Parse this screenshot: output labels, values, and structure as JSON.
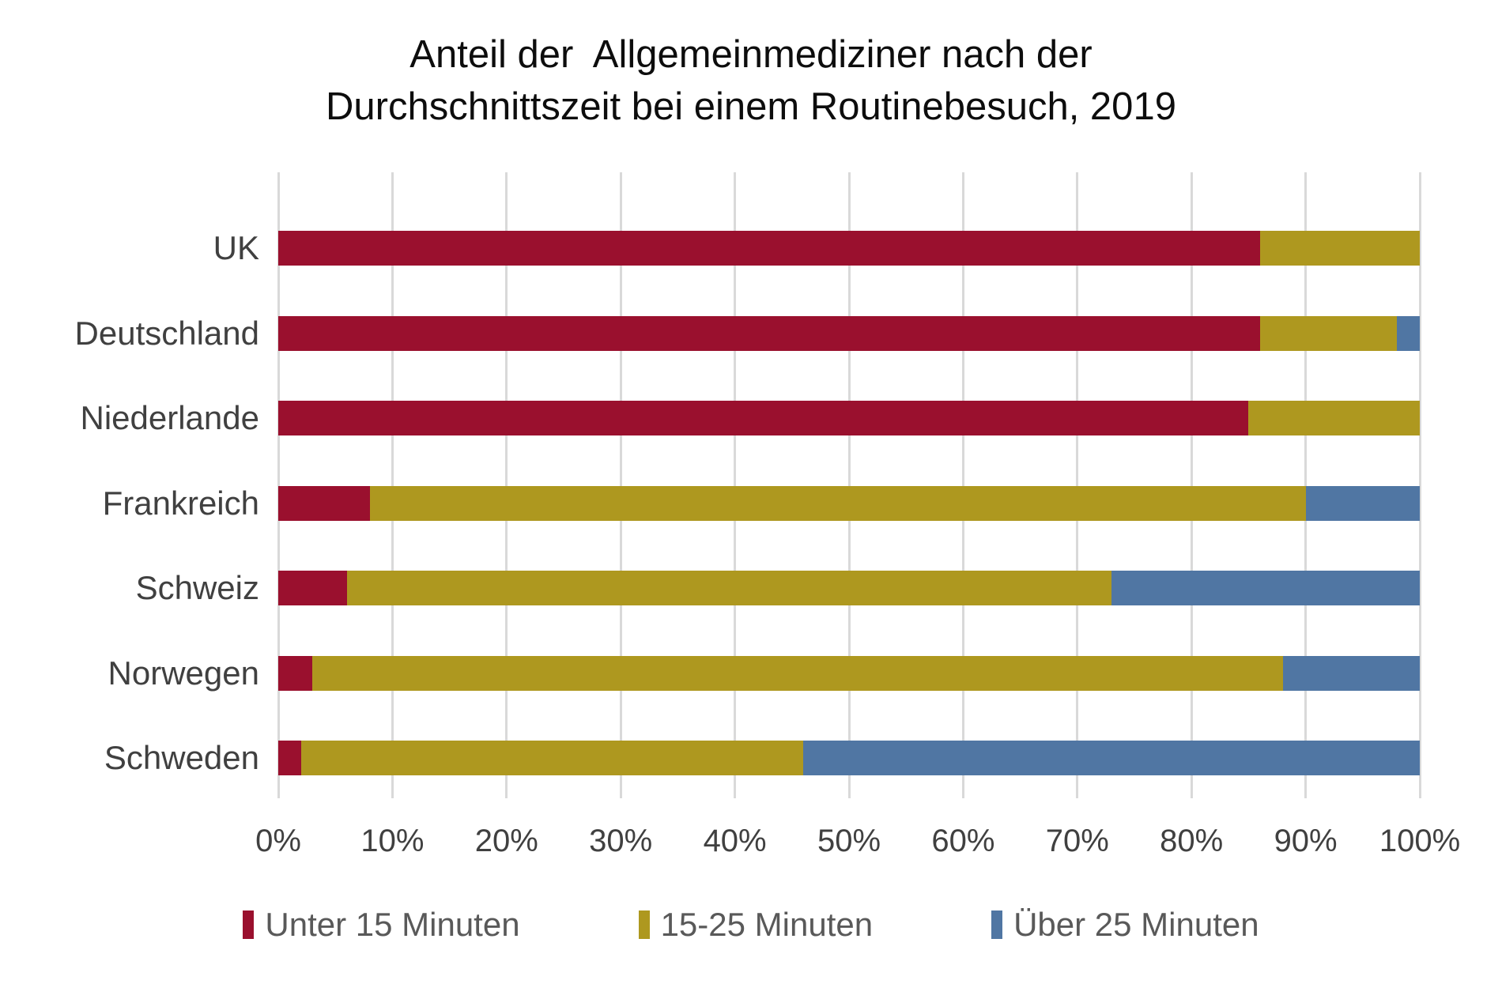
{
  "title": {
    "line1": "Anteil der  Allgemeinmediziner nach der",
    "line2": "Durchschnittszeit bei einem Routinebesuch, 2019"
  },
  "chart_data": {
    "type": "bar",
    "orientation": "horizontal",
    "stacked": true,
    "title": "Anteil der Allgemeinmediziner nach der Durchschnittszeit bei einem Routinebesuch, 2019",
    "categories": [
      "UK",
      "Deutschland",
      "Niederlande",
      "Frankreich",
      "Schweiz",
      "Norwegen",
      "Schweden"
    ],
    "series": [
      {
        "name": "Unter 15 Minuten",
        "color": "#9a102e",
        "values": [
          86,
          86,
          85,
          8,
          6,
          3,
          2
        ]
      },
      {
        "name": "15-25 Minuten",
        "color": "#ae981f",
        "values": [
          14,
          12,
          15,
          82,
          67,
          85,
          44
        ]
      },
      {
        "name": "Über 25 Minuten",
        "color": "#5076a3",
        "values": [
          0,
          2,
          0,
          10,
          27,
          12,
          54
        ]
      }
    ],
    "x_axis": {
      "min": 0,
      "max": 100,
      "tick_step": 10,
      "ticks": [
        "0%",
        "10%",
        "20%",
        "30%",
        "40%",
        "50%",
        "60%",
        "70%",
        "80%",
        "90%",
        "100%"
      ]
    },
    "grid": true,
    "legend_position": "bottom"
  },
  "colors": {
    "background": "#ffffff",
    "gridline": "#d9d9d9",
    "title_text": "#0d0d0d",
    "axis_text": "#404040",
    "legend_text": "#595959"
  }
}
